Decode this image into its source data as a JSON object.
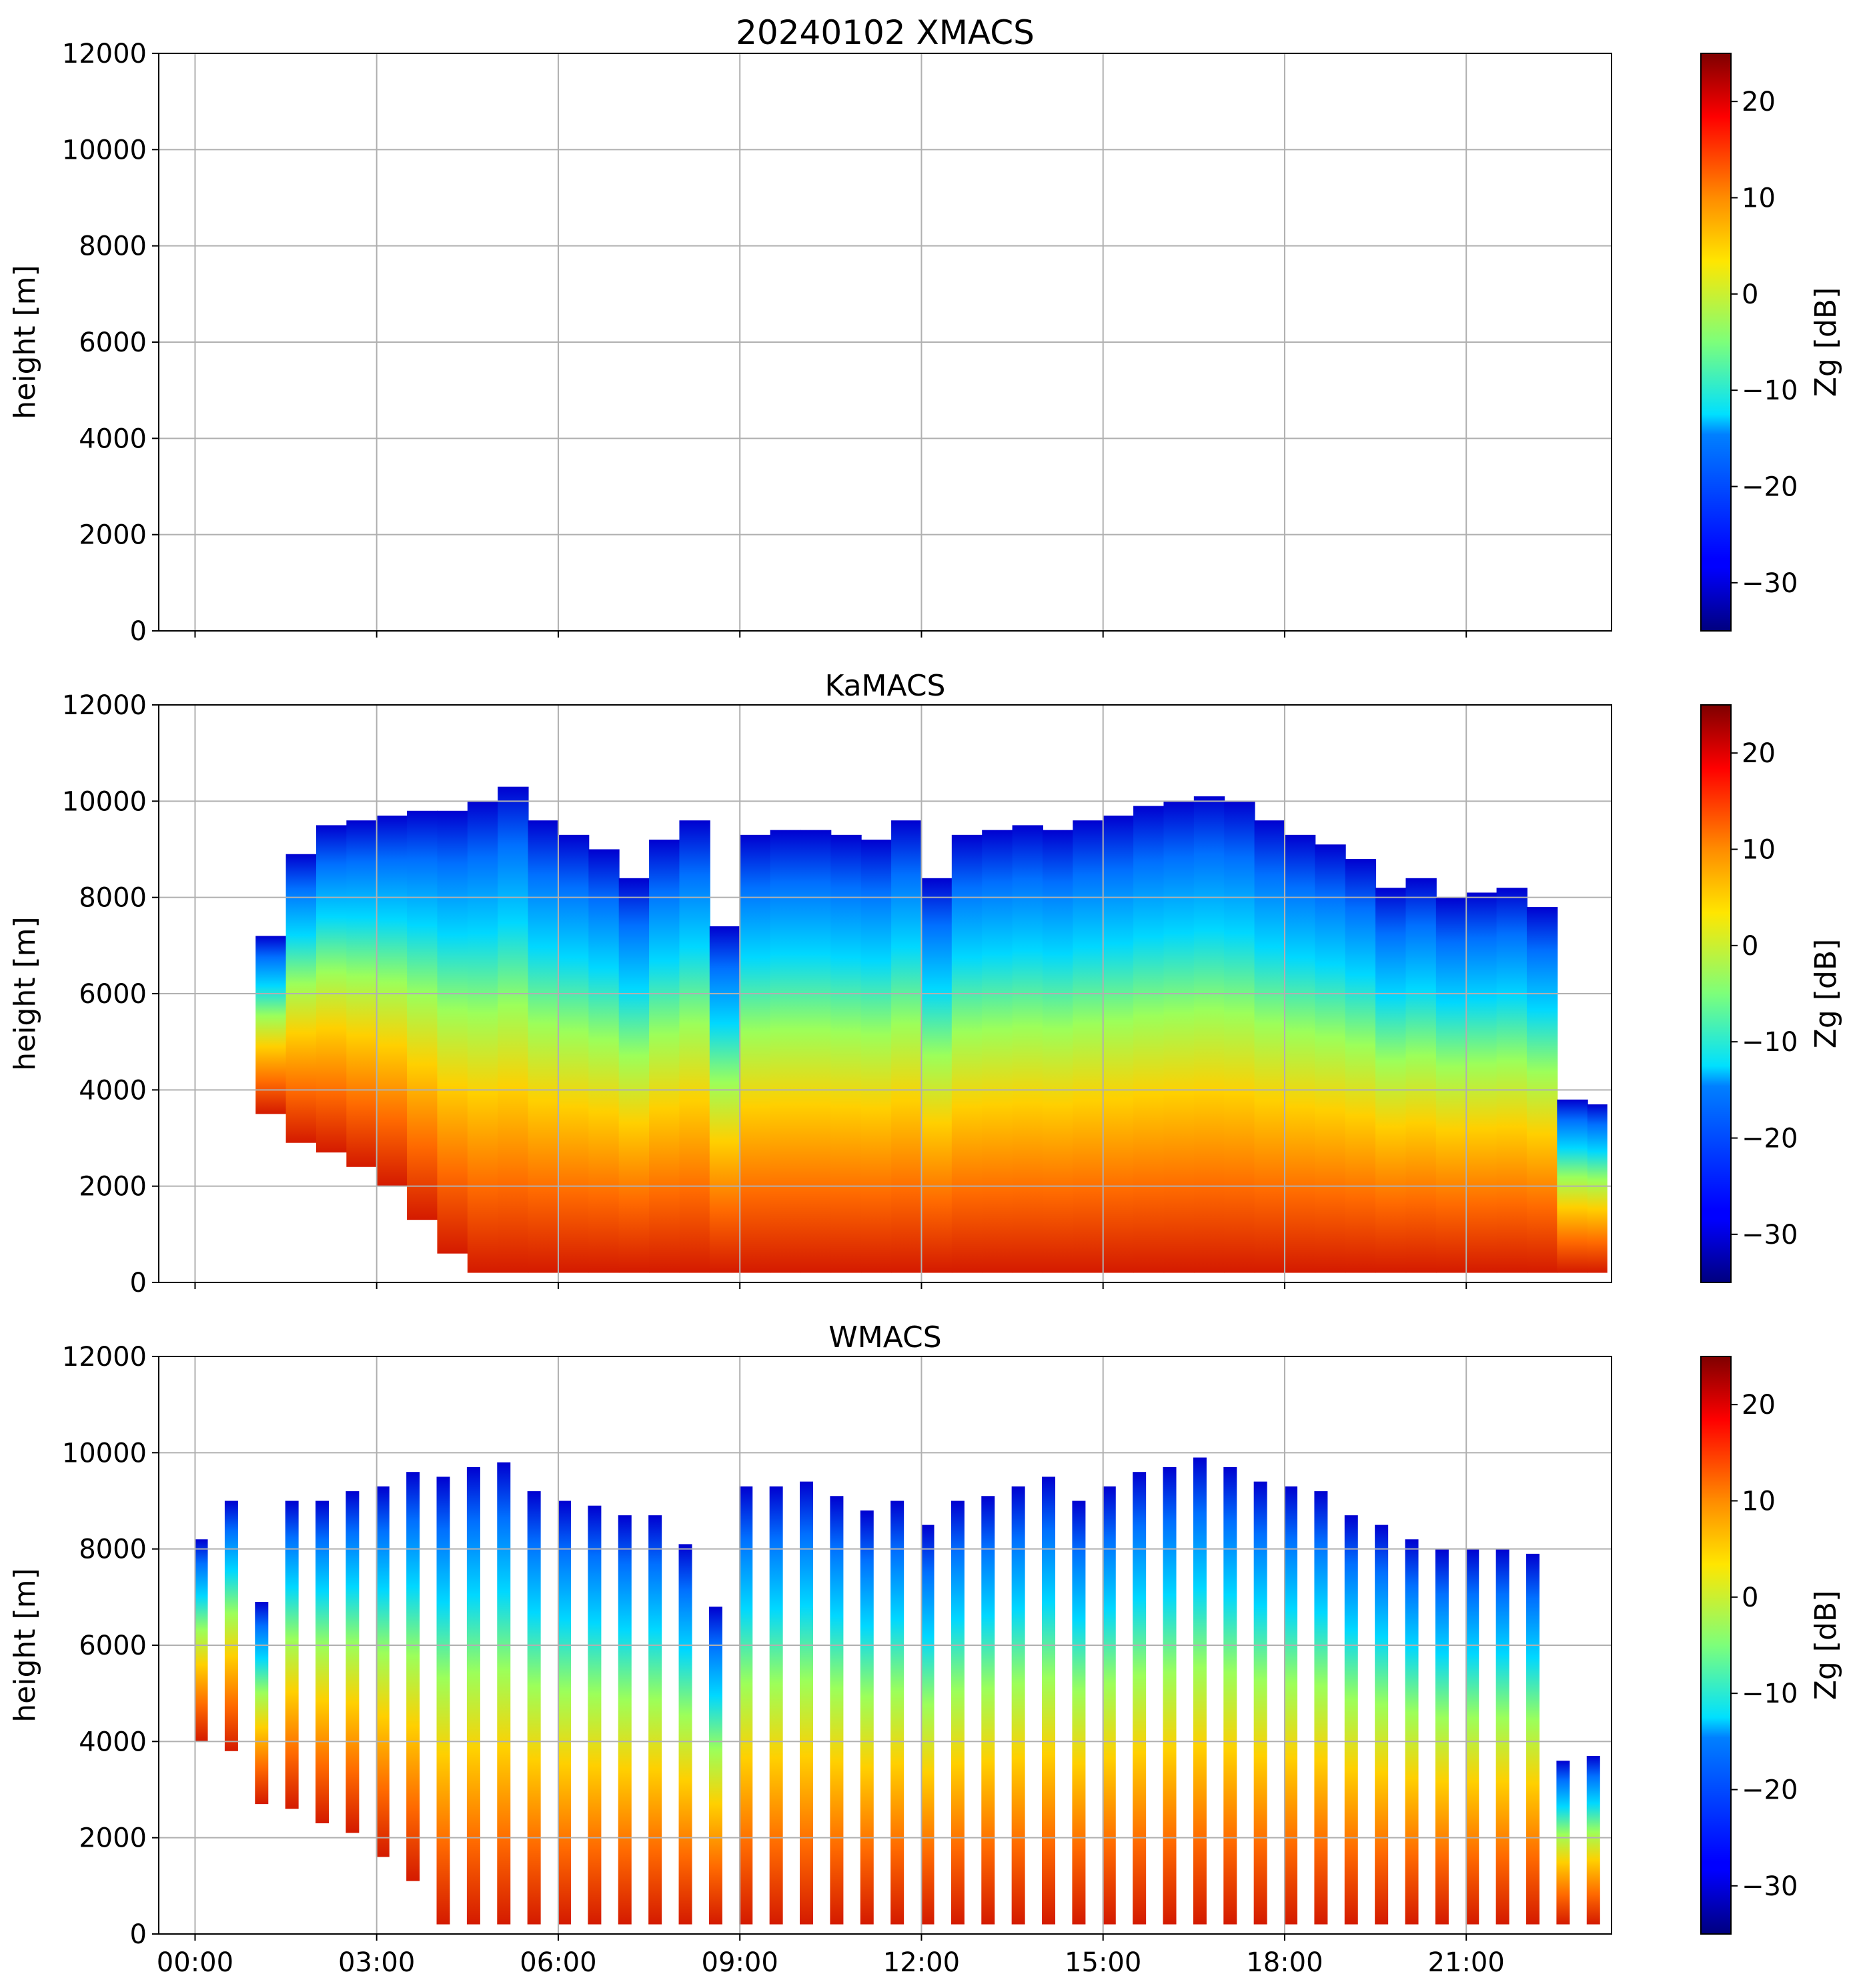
{
  "chart_data": [
    {
      "type": "heatmap",
      "title": "20240102 XMACS",
      "ylabel": "height [m]",
      "ylim": [
        0,
        12000
      ],
      "yticks": [
        "0",
        "2000",
        "4000",
        "6000",
        "8000",
        "10000",
        "12000"
      ],
      "xticks": [
        "00:00",
        "03:00",
        "06:00",
        "09:00",
        "12:00",
        "15:00",
        "18:00",
        "21:00"
      ],
      "show_xtick_labels": false,
      "colorbar": {
        "label": "Zg [dB]",
        "range": [
          -35,
          25
        ],
        "ticks": [
          "−30",
          "−20",
          "−10",
          "0",
          "10",
          "20"
        ]
      },
      "grid": true,
      "data_present": false,
      "approx_echo": []
    },
    {
      "type": "heatmap",
      "title": "KaMACS",
      "ylabel": "height [m]",
      "ylim": [
        0,
        12000
      ],
      "yticks": [
        "0",
        "2000",
        "4000",
        "6000",
        "8000",
        "10000",
        "12000"
      ],
      "xticks": [
        "00:00",
        "03:00",
        "06:00",
        "09:00",
        "12:00",
        "15:00",
        "18:00",
        "21:00"
      ],
      "show_xtick_labels": false,
      "colorbar": {
        "label": "Zg [dB]",
        "range": [
          -35,
          25
        ],
        "ticks": [
          "−30",
          "−20",
          "−10",
          "0",
          "10",
          "20"
        ]
      },
      "grid": true,
      "data_present": true,
      "approx_echo": [
        {
          "t": 1.0,
          "base": 3500,
          "top": 7200
        },
        {
          "t": 1.5,
          "base": 2900,
          "top": 8900
        },
        {
          "t": 2.0,
          "base": 2700,
          "top": 9500
        },
        {
          "t": 2.5,
          "base": 2400,
          "top": 9600
        },
        {
          "t": 3.0,
          "base": 2000,
          "top": 9700
        },
        {
          "t": 3.5,
          "base": 1300,
          "top": 9800
        },
        {
          "t": 4.0,
          "base": 600,
          "top": 9800
        },
        {
          "t": 4.5,
          "base": 200,
          "top": 10000
        },
        {
          "t": 5.0,
          "base": 200,
          "top": 10300
        },
        {
          "t": 5.5,
          "base": 200,
          "top": 9600
        },
        {
          "t": 6.0,
          "base": 200,
          "top": 9300
        },
        {
          "t": 6.5,
          "base": 200,
          "top": 9000
        },
        {
          "t": 7.0,
          "base": 200,
          "top": 8400
        },
        {
          "t": 7.5,
          "base": 200,
          "top": 9200
        },
        {
          "t": 8.0,
          "base": 200,
          "top": 9600
        },
        {
          "t": 8.5,
          "base": 200,
          "top": 7400
        },
        {
          "t": 9.0,
          "base": 200,
          "top": 9300
        },
        {
          "t": 9.5,
          "base": 200,
          "top": 9400
        },
        {
          "t": 10.0,
          "base": 200,
          "top": 9400
        },
        {
          "t": 10.5,
          "base": 200,
          "top": 9300
        },
        {
          "t": 11.0,
          "base": 200,
          "top": 9200
        },
        {
          "t": 11.5,
          "base": 200,
          "top": 9600
        },
        {
          "t": 12.0,
          "base": 200,
          "top": 8400
        },
        {
          "t": 12.5,
          "base": 200,
          "top": 9300
        },
        {
          "t": 13.0,
          "base": 200,
          "top": 9400
        },
        {
          "t": 13.5,
          "base": 200,
          "top": 9500
        },
        {
          "t": 14.0,
          "base": 200,
          "top": 9400
        },
        {
          "t": 14.5,
          "base": 200,
          "top": 9600
        },
        {
          "t": 15.0,
          "base": 200,
          "top": 9700
        },
        {
          "t": 15.5,
          "base": 200,
          "top": 9900
        },
        {
          "t": 16.0,
          "base": 200,
          "top": 10000
        },
        {
          "t": 16.5,
          "base": 200,
          "top": 10100
        },
        {
          "t": 17.0,
          "base": 200,
          "top": 10000
        },
        {
          "t": 17.5,
          "base": 200,
          "top": 9600
        },
        {
          "t": 18.0,
          "base": 200,
          "top": 9300
        },
        {
          "t": 18.5,
          "base": 200,
          "top": 9100
        },
        {
          "t": 19.0,
          "base": 200,
          "top": 8800
        },
        {
          "t": 19.5,
          "base": 200,
          "top": 8200
        },
        {
          "t": 20.0,
          "base": 200,
          "top": 8400
        },
        {
          "t": 20.5,
          "base": 200,
          "top": 8000
        },
        {
          "t": 21.0,
          "base": 200,
          "top": 8100
        },
        {
          "t": 21.5,
          "base": 200,
          "top": 8200
        },
        {
          "t": 22.0,
          "base": 200,
          "top": 7800
        },
        {
          "t": 22.5,
          "base": 200,
          "top": 3800
        },
        {
          "t": 23.0,
          "base": 200,
          "top": 3700
        }
      ]
    },
    {
      "type": "heatmap",
      "title": "WMACS",
      "ylabel": "height [m]",
      "ylim": [
        0,
        12000
      ],
      "yticks": [
        "0",
        "2000",
        "4000",
        "6000",
        "8000",
        "10000",
        "12000"
      ],
      "xticks": [
        "00:00",
        "03:00",
        "06:00",
        "09:00",
        "12:00",
        "15:00",
        "18:00",
        "21:00"
      ],
      "show_xtick_labels": true,
      "colorbar": {
        "label": "Zg [dB]",
        "range": [
          -35,
          25
        ],
        "ticks": [
          "−30",
          "−20",
          "−10",
          "0",
          "10",
          "20"
        ]
      },
      "grid": true,
      "data_present": true,
      "approx_echo": [
        {
          "t": 0.1,
          "base": 4000,
          "top": 8200
        },
        {
          "t": 0.6,
          "base": 3800,
          "top": 9000
        },
        {
          "t": 1.1,
          "base": 2700,
          "top": 6900
        },
        {
          "t": 1.6,
          "base": 2600,
          "top": 9000
        },
        {
          "t": 2.1,
          "base": 2300,
          "top": 9000
        },
        {
          "t": 2.6,
          "base": 2100,
          "top": 9200
        },
        {
          "t": 3.1,
          "base": 1600,
          "top": 9300
        },
        {
          "t": 3.6,
          "base": 1100,
          "top": 9600
        },
        {
          "t": 4.1,
          "base": 200,
          "top": 9500
        },
        {
          "t": 4.6,
          "base": 200,
          "top": 9700
        },
        {
          "t": 5.1,
          "base": 200,
          "top": 9800
        },
        {
          "t": 5.6,
          "base": 200,
          "top": 9200
        },
        {
          "t": 6.1,
          "base": 200,
          "top": 9000
        },
        {
          "t": 6.6,
          "base": 200,
          "top": 8900
        },
        {
          "t": 7.1,
          "base": 200,
          "top": 8700
        },
        {
          "t": 7.6,
          "base": 200,
          "top": 8700
        },
        {
          "t": 8.1,
          "base": 200,
          "top": 8100
        },
        {
          "t": 8.6,
          "base": 200,
          "top": 6800
        },
        {
          "t": 9.1,
          "base": 200,
          "top": 9300
        },
        {
          "t": 9.6,
          "base": 200,
          "top": 9300
        },
        {
          "t": 10.1,
          "base": 200,
          "top": 9400
        },
        {
          "t": 10.6,
          "base": 200,
          "top": 9100
        },
        {
          "t": 11.1,
          "base": 200,
          "top": 8800
        },
        {
          "t": 11.6,
          "base": 200,
          "top": 9000
        },
        {
          "t": 12.1,
          "base": 200,
          "top": 8500
        },
        {
          "t": 12.6,
          "base": 200,
          "top": 9000
        },
        {
          "t": 13.1,
          "base": 200,
          "top": 9100
        },
        {
          "t": 13.6,
          "base": 200,
          "top": 9300
        },
        {
          "t": 14.1,
          "base": 200,
          "top": 9500
        },
        {
          "t": 14.6,
          "base": 200,
          "top": 9000
        },
        {
          "t": 15.1,
          "base": 200,
          "top": 9300
        },
        {
          "t": 15.6,
          "base": 200,
          "top": 9600
        },
        {
          "t": 16.1,
          "base": 200,
          "top": 9700
        },
        {
          "t": 16.6,
          "base": 200,
          "top": 9900
        },
        {
          "t": 17.1,
          "base": 200,
          "top": 9700
        },
        {
          "t": 17.6,
          "base": 200,
          "top": 9400
        },
        {
          "t": 18.1,
          "base": 200,
          "top": 9300
        },
        {
          "t": 18.6,
          "base": 200,
          "top": 9200
        },
        {
          "t": 19.1,
          "base": 200,
          "top": 8700
        },
        {
          "t": 19.6,
          "base": 200,
          "top": 8500
        },
        {
          "t": 20.1,
          "base": 200,
          "top": 8200
        },
        {
          "t": 20.6,
          "base": 200,
          "top": 8000
        },
        {
          "t": 21.1,
          "base": 200,
          "top": 8000
        },
        {
          "t": 21.6,
          "base": 200,
          "top": 8000
        },
        {
          "t": 22.1,
          "base": 200,
          "top": 7900
        },
        {
          "t": 22.6,
          "base": 200,
          "top": 3600
        },
        {
          "t": 23.1,
          "base": 200,
          "top": 3700
        }
      ]
    }
  ]
}
